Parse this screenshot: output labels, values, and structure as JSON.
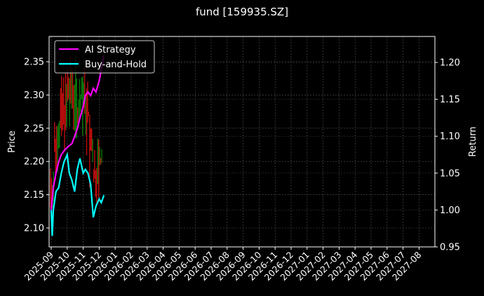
{
  "title": "fund [159935.SZ]",
  "colors": {
    "background": "#000000",
    "ai_strategy": "#ff00ff",
    "buy_and_hold": "#00ffff",
    "candle_up": "#008000",
    "candle_down": "#ff0000",
    "grid": "#444444",
    "axes": "#ffffff"
  },
  "chart_data": {
    "type": "line",
    "title": "fund [159935.SZ]",
    "xlabel": "",
    "ylabel": "Price",
    "ylabel_right": "Return",
    "ylim": [
      2.075,
      2.39
    ],
    "ylim_right": [
      0.95,
      1.23
    ],
    "grid": true,
    "legend_position": "upper left",
    "x_ticks": [
      "2025-09",
      "2025-10",
      "2025-11",
      "2025-12",
      "2026-01",
      "2026-02",
      "2026-03",
      "2026-04",
      "2026-05",
      "2026-06",
      "2026-07",
      "2026-08",
      "2026-09",
      "2026-10",
      "2026-11",
      "2026-12",
      "2027-01",
      "2027-02",
      "2027-03",
      "2027-04",
      "2027-05",
      "2027-06",
      "2027-07",
      "2027-08"
    ],
    "y_ticks_left": [
      2.1,
      2.15,
      2.2,
      2.25,
      2.3,
      2.35
    ],
    "y_ticks_right": [
      0.95,
      1.0,
      1.05,
      1.1,
      1.15,
      1.2
    ],
    "legend": [
      "AI Strategy",
      "Buy-and-Hold"
    ],
    "series": [
      {
        "name": "AI Strategy",
        "axis": "right",
        "x": [
          "2025-09-01",
          "2025-09-05",
          "2025-09-10",
          "2025-09-15",
          "2025-09-20",
          "2025-09-25",
          "2025-10-01",
          "2025-10-10",
          "2025-10-15",
          "2025-10-20",
          "2025-10-25",
          "2025-11-01",
          "2025-11-05",
          "2025-11-10",
          "2025-11-15",
          "2025-11-20",
          "2025-11-25",
          "2025-12-01",
          "2025-12-05",
          "2025-12-10"
        ],
        "values": [
          1.0,
          1.03,
          1.05,
          1.065,
          1.075,
          1.08,
          1.085,
          1.09,
          1.1,
          1.11,
          1.125,
          1.14,
          1.155,
          1.16,
          1.155,
          1.165,
          1.16,
          1.175,
          1.19,
          1.21
        ]
      },
      {
        "name": "Buy-and-Hold",
        "axis": "right",
        "x": [
          "2025-09-01",
          "2025-09-03",
          "2025-09-05",
          "2025-09-10",
          "2025-09-15",
          "2025-09-20",
          "2025-09-25",
          "2025-10-01",
          "2025-10-05",
          "2025-10-10",
          "2025-10-15",
          "2025-10-20",
          "2025-10-25",
          "2025-11-01",
          "2025-11-05",
          "2025-11-10",
          "2025-11-15",
          "2025-11-20",
          "2025-11-25",
          "2025-12-01",
          "2025-12-05",
          "2025-12-10"
        ],
        "values": [
          1.0,
          0.965,
          1.0,
          1.025,
          1.03,
          1.05,
          1.065,
          1.075,
          1.05,
          1.04,
          1.025,
          1.055,
          1.07,
          1.05,
          1.055,
          1.05,
          1.035,
          0.99,
          1.005,
          1.015,
          1.01,
          1.02
        ]
      },
      {
        "name": "Price (candles)",
        "axis": "left",
        "type": "candlestick",
        "range_min": 2.13,
        "range_max": 2.36
      }
    ]
  }
}
